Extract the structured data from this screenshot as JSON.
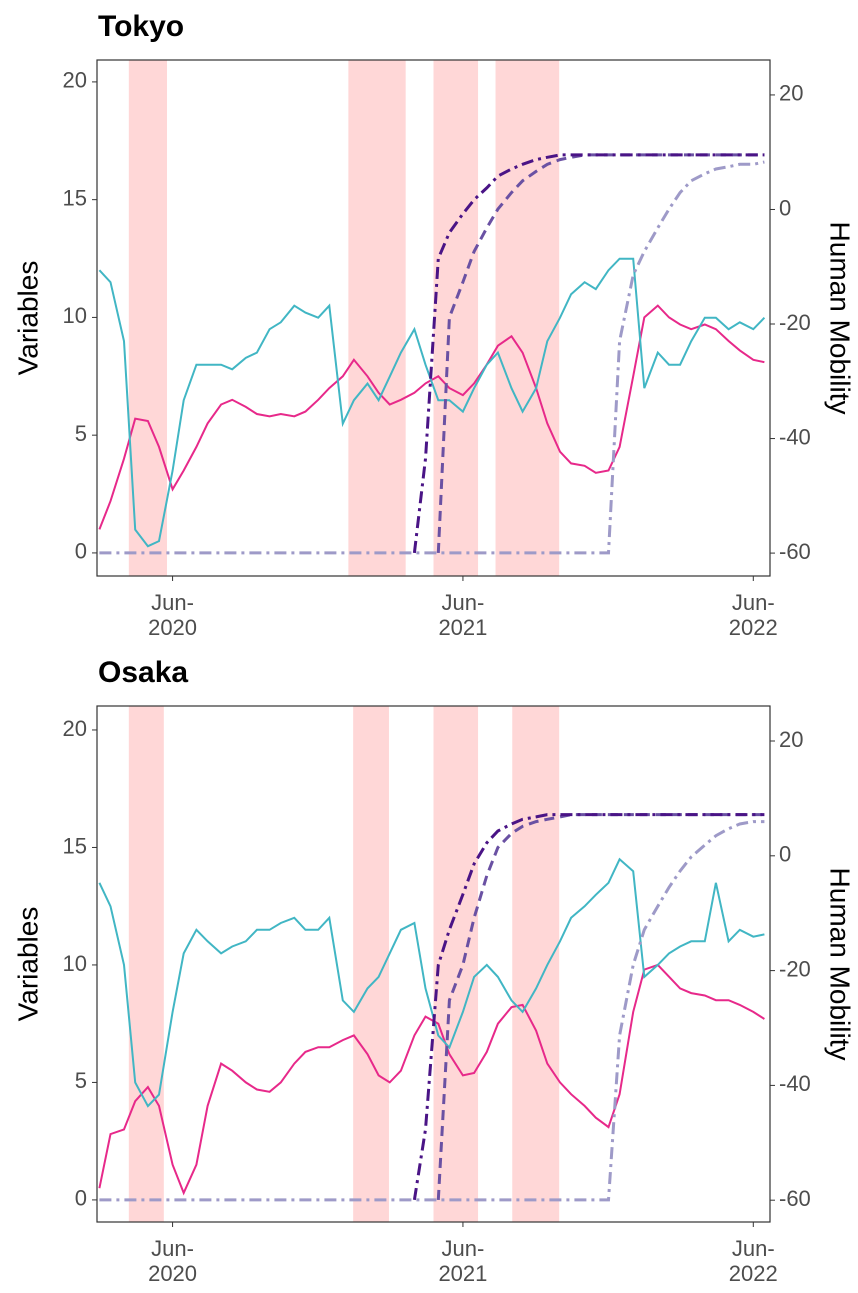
{
  "chart_data": [
    {
      "type": "line",
      "title": "Tokyo",
      "ylabel": "Variables",
      "y2label": "Human Mobility",
      "x": [
        "2020-03-01",
        "2020-03-15",
        "2020-04-01",
        "2020-04-15",
        "2020-05-01",
        "2020-05-15",
        "2020-06-01",
        "2020-06-15",
        "2020-07-01",
        "2020-07-15",
        "2020-08-01",
        "2020-08-15",
        "2020-09-01",
        "2020-09-15",
        "2020-10-01",
        "2020-10-15",
        "2020-11-01",
        "2020-11-15",
        "2020-12-01",
        "2020-12-15",
        "2021-01-01",
        "2021-01-15",
        "2021-02-01",
        "2021-02-15",
        "2021-03-01",
        "2021-03-15",
        "2021-04-01",
        "2021-04-15",
        "2021-05-01",
        "2021-05-15",
        "2021-06-01",
        "2021-06-15",
        "2021-07-01",
        "2021-07-15",
        "2021-08-01",
        "2021-08-15",
        "2021-09-01",
        "2021-09-15",
        "2021-10-01",
        "2021-10-15",
        "2021-11-01",
        "2021-11-15",
        "2021-12-01",
        "2021-12-15",
        "2022-01-01",
        "2022-01-15",
        "2022-02-01",
        "2022-02-15",
        "2022-03-01",
        "2022-03-15",
        "2022-04-01",
        "2022-04-15",
        "2022-05-01",
        "2022-05-15",
        "2022-06-01",
        "2022-06-15"
      ],
      "xlim": [
        "2020-02-27",
        "2022-06-22"
      ],
      "xticks": [
        {
          "value": "2020-06-01",
          "label": "Jun-\n2020"
        },
        {
          "value": "2021-06-01",
          "label": "Jun-\n2021"
        },
        {
          "value": "2022-06-01",
          "label": "Jun-\n2022"
        }
      ],
      "ylim": [
        -0.98,
        20.93
      ],
      "yticks": [
        0,
        5,
        10,
        15,
        20
      ],
      "y2lim": [
        -64,
        26.1
      ],
      "y2ticks": [
        -60,
        -40,
        -20,
        0,
        20
      ],
      "shade_color": "#ffd7d7",
      "shaded_periods": [
        {
          "start": "2020-04-07",
          "end": "2020-05-25"
        },
        {
          "start": "2021-01-08",
          "end": "2021-03-21"
        },
        {
          "start": "2021-04-25",
          "end": "2021-06-20"
        },
        {
          "start": "2021-07-12",
          "end": "2021-09-30"
        }
      ],
      "series": [
        {
          "color": "#e7298a",
          "dash": "solid",
          "values": [
            1,
            2.2,
            4,
            5.7,
            5.6,
            4.5,
            2.7,
            3.5,
            4.5,
            5.5,
            6.3,
            6.5,
            6.2,
            5.9,
            5.8,
            5.9,
            5.8,
            6,
            6.5,
            7,
            7.5,
            8.2,
            7.5,
            6.8,
            6.3,
            6.5,
            6.8,
            7.2,
            7.5,
            7,
            6.7,
            7.2,
            8,
            8.8,
            9.2,
            8.5,
            7,
            5.5,
            4.3,
            3.8,
            3.7,
            3.4,
            3.5,
            4.5,
            7.5,
            10,
            10.5,
            10,
            9.7,
            9.5,
            9.7,
            9.5,
            9,
            8.6,
            8.2,
            8.1
          ]
        },
        {
          "color": "#41b6c4",
          "dash": "solid",
          "axis": "y2",
          "values": [
            -10.6,
            -12.7,
            -23,
            -55.9,
            -58.8,
            -57.9,
            -45.6,
            -33.3,
            -27.1,
            -27.1,
            -27.1,
            -27.9,
            -25.9,
            -25,
            -20.9,
            -19.7,
            -16.8,
            -18,
            -18.9,
            -16.8,
            -37.4,
            -33.3,
            -30.4,
            -33.3,
            -29.2,
            -25,
            -20.9,
            -27.1,
            -33.3,
            -33.3,
            -35.3,
            -31.2,
            -27.1,
            -25,
            -31.2,
            -35.3,
            -31.2,
            -23,
            -18.9,
            -14.8,
            -12.7,
            -13.9,
            -10.6,
            -8.6,
            -8.6,
            -31.2,
            -25,
            -27.1,
            -27.1,
            -23,
            -18.9,
            -18.9,
            -20.9,
            -19.7,
            -20.9,
            -18.9
          ]
        },
        {
          "color": "#9e9ac8",
          "dash": "dashdot",
          "values": [
            0,
            0,
            0,
            0,
            0,
            0,
            0,
            0,
            0,
            0,
            0,
            0,
            0,
            0,
            0,
            0,
            0,
            0,
            0,
            0,
            0,
            0,
            0,
            0,
            0,
            0,
            0,
            0,
            0,
            0,
            0,
            0,
            0,
            0,
            0,
            0,
            0,
            0,
            0,
            0,
            0,
            0,
            0,
            9,
            11.8,
            12.8,
            13.8,
            14.6,
            15.3,
            15.8,
            16.1,
            16.3,
            16.4,
            16.5,
            16.5,
            16.6
          ]
        },
        {
          "color": "#6a51a3",
          "dash": "dashed",
          "values": [
            null,
            null,
            null,
            null,
            null,
            null,
            null,
            null,
            null,
            null,
            null,
            null,
            null,
            null,
            null,
            null,
            null,
            null,
            null,
            null,
            null,
            null,
            null,
            null,
            null,
            null,
            null,
            null,
            0,
            10,
            11.5,
            12.8,
            13.8,
            14.6,
            15.3,
            15.8,
            16.2,
            16.5,
            16.7,
            16.8,
            16.9,
            16.9,
            16.9,
            16.9,
            16.9,
            16.9,
            16.9,
            16.9,
            16.9,
            16.9,
            16.9,
            16.9,
            16.9,
            16.9,
            16.9,
            16.9
          ]
        },
        {
          "color": "#4a1486",
          "dash": "dashdot",
          "values": [
            null,
            null,
            null,
            null,
            null,
            null,
            null,
            null,
            null,
            null,
            null,
            null,
            null,
            null,
            null,
            null,
            null,
            null,
            null,
            null,
            null,
            null,
            null,
            null,
            null,
            null,
            0,
            4,
            12.5,
            13.6,
            14.4,
            15,
            15.5,
            16,
            16.3,
            16.5,
            16.7,
            16.8,
            16.9,
            16.9,
            16.9,
            16.9,
            16.9,
            16.9,
            16.9,
            16.9,
            16.9,
            16.9,
            16.9,
            16.9,
            16.9,
            16.9,
            16.9,
            16.9,
            16.9,
            16.9
          ]
        }
      ]
    },
    {
      "type": "line",
      "title": "Osaka",
      "ylabel": "Variables",
      "y2label": "Human Mobility",
      "x": [
        "2020-03-01",
        "2020-03-15",
        "2020-04-01",
        "2020-04-15",
        "2020-05-01",
        "2020-05-15",
        "2020-06-01",
        "2020-06-15",
        "2020-07-01",
        "2020-07-15",
        "2020-08-01",
        "2020-08-15",
        "2020-09-01",
        "2020-09-15",
        "2020-10-01",
        "2020-10-15",
        "2020-11-01",
        "2020-11-15",
        "2020-12-01",
        "2020-12-15",
        "2021-01-01",
        "2021-01-15",
        "2021-02-01",
        "2021-02-15",
        "2021-03-01",
        "2021-03-15",
        "2021-04-01",
        "2021-04-15",
        "2021-05-01",
        "2021-05-15",
        "2021-06-01",
        "2021-06-15",
        "2021-07-01",
        "2021-07-15",
        "2021-08-01",
        "2021-08-15",
        "2021-09-01",
        "2021-09-15",
        "2021-10-01",
        "2021-10-15",
        "2021-11-01",
        "2021-11-15",
        "2021-12-01",
        "2021-12-15",
        "2022-01-01",
        "2022-01-15",
        "2022-02-01",
        "2022-02-15",
        "2022-03-01",
        "2022-03-15",
        "2022-04-01",
        "2022-04-15",
        "2022-05-01",
        "2022-05-15",
        "2022-06-01",
        "2022-06-15"
      ],
      "xlim": [
        "2020-02-27",
        "2022-06-22"
      ],
      "xticks": [
        {
          "value": "2020-06-01",
          "label": "Jun-\n2020"
        },
        {
          "value": "2021-06-01",
          "label": "Jun-\n2021"
        },
        {
          "value": "2022-06-01",
          "label": "Jun-\n2022"
        }
      ],
      "ylim": [
        -0.94,
        21.02
      ],
      "yticks": [
        0,
        5,
        10,
        15,
        20
      ],
      "y2lim": [
        -63.8,
        26.1
      ],
      "y2ticks": [
        -60,
        -40,
        -20,
        0,
        20
      ],
      "shade_color": "#ffd7d7",
      "shaded_periods": [
        {
          "start": "2020-04-07",
          "end": "2020-05-21"
        },
        {
          "start": "2021-01-14",
          "end": "2021-02-28"
        },
        {
          "start": "2021-04-25",
          "end": "2021-06-20"
        },
        {
          "start": "2021-08-02",
          "end": "2021-09-30"
        }
      ],
      "series": [
        {
          "color": "#e7298a",
          "dash": "solid",
          "values": [
            0.5,
            2.8,
            3,
            4.2,
            4.8,
            4,
            1.5,
            0.3,
            1.5,
            4,
            5.8,
            5.5,
            5,
            4.7,
            4.6,
            5,
            5.8,
            6.3,
            6.5,
            6.5,
            6.8,
            7,
            6.2,
            5.3,
            5,
            5.5,
            7,
            7.8,
            7.5,
            6.2,
            5.3,
            5.4,
            6.3,
            7.5,
            8.2,
            8.3,
            7.2,
            5.8,
            5,
            4.5,
            4,
            3.5,
            3.1,
            4.5,
            8,
            9.8,
            10,
            9.5,
            9,
            8.8,
            8.7,
            8.5,
            8.5,
            8.3,
            8,
            7.7
          ]
        },
        {
          "color": "#41b6c4",
          "dash": "solid",
          "axis": "y2",
          "values": [
            -4.7,
            -8.8,
            -19,
            -39.5,
            -43.6,
            -41.6,
            -27.2,
            -17,
            -12.9,
            -14.9,
            -17,
            -15.8,
            -14.9,
            -12.9,
            -12.9,
            -11.7,
            -10.8,
            -12.9,
            -12.9,
            -10.8,
            -25.2,
            -27.2,
            -23.1,
            -21.1,
            -17,
            -12.9,
            -11.7,
            -23.1,
            -31.3,
            -33.4,
            -27.2,
            -21.1,
            -19,
            -21.1,
            -25.2,
            -27.2,
            -23.1,
            -19,
            -14.9,
            -10.8,
            -8.8,
            -6.8,
            -4.7,
            -0.6,
            -2.7,
            -21.1,
            -19,
            -17,
            -15.8,
            -14.9,
            -14.9,
            -4.7,
            -14.9,
            -12.9,
            -14.1,
            -13.7
          ]
        },
        {
          "color": "#9e9ac8",
          "dash": "dashdot",
          "values": [
            0,
            0,
            0,
            0,
            0,
            0,
            0,
            0,
            0,
            0,
            0,
            0,
            0,
            0,
            0,
            0,
            0,
            0,
            0,
            0,
            0,
            0,
            0,
            0,
            0,
            0,
            0,
            0,
            0,
            0,
            0,
            0,
            0,
            0,
            0,
            0,
            0,
            0,
            0,
            0,
            0,
            0,
            0,
            7,
            10,
            11.5,
            12.5,
            13.3,
            14,
            14.6,
            15.1,
            15.5,
            15.8,
            16,
            16.1,
            16.1
          ]
        },
        {
          "color": "#6a51a3",
          "dash": "dashed",
          "values": [
            null,
            null,
            null,
            null,
            null,
            null,
            null,
            null,
            null,
            null,
            null,
            null,
            null,
            null,
            null,
            null,
            null,
            null,
            null,
            null,
            null,
            null,
            null,
            null,
            null,
            null,
            null,
            null,
            0,
            8.5,
            10,
            12,
            13.8,
            15,
            15.6,
            15.9,
            16.1,
            16.2,
            16.3,
            16.4,
            16.4,
            16.4,
            16.4,
            16.4,
            16.4,
            16.4,
            16.4,
            16.4,
            16.4,
            16.4,
            16.4,
            16.4,
            16.4,
            16.4,
            16.4,
            16.4
          ]
        },
        {
          "color": "#4a1486",
          "dash": "dashdot",
          "values": [
            null,
            null,
            null,
            null,
            null,
            null,
            null,
            null,
            null,
            null,
            null,
            null,
            null,
            null,
            null,
            null,
            null,
            null,
            null,
            null,
            null,
            null,
            null,
            null,
            null,
            null,
            0,
            3,
            10,
            11.5,
            13,
            14.3,
            15.2,
            15.7,
            16,
            16.2,
            16.3,
            16.4,
            16.4,
            16.4,
            16.4,
            16.4,
            16.4,
            16.4,
            16.4,
            16.4,
            16.4,
            16.4,
            16.4,
            16.4,
            16.4,
            16.4,
            16.4,
            16.4,
            16.4,
            16.4
          ]
        }
      ]
    }
  ]
}
